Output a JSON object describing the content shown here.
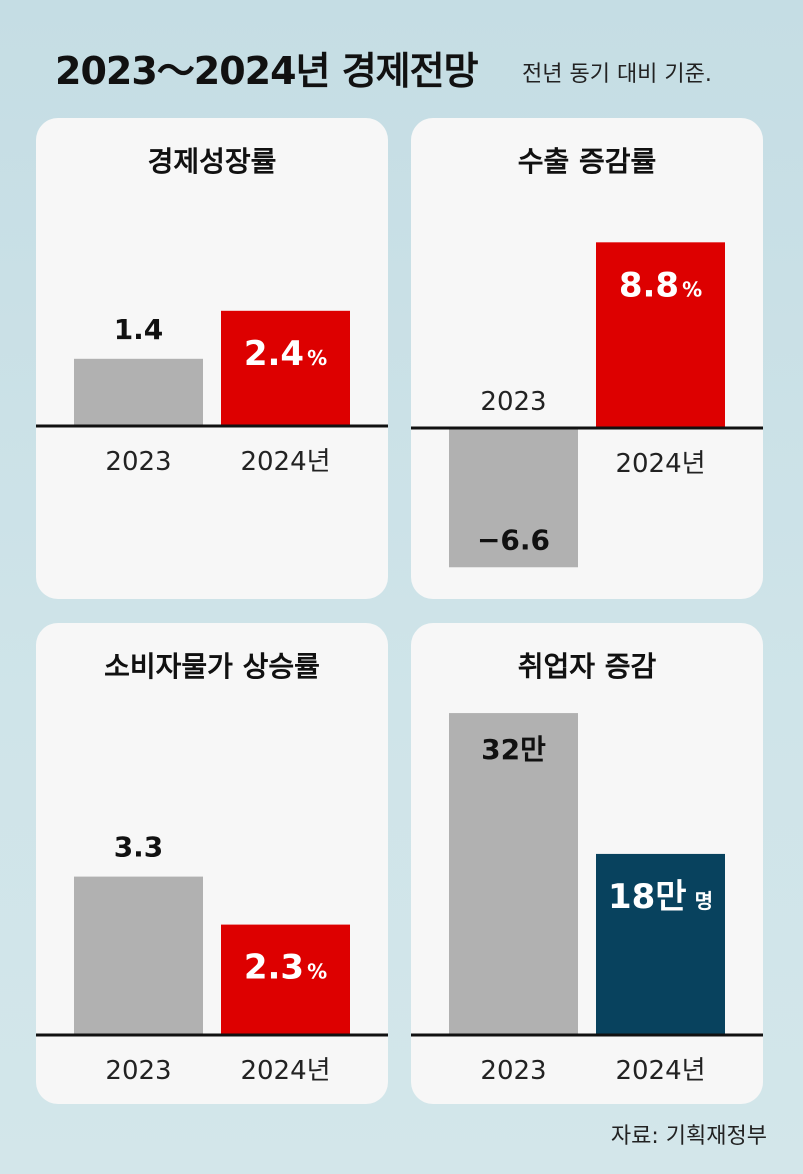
{
  "header": {
    "title": "2023～2024년 경제전망",
    "subtitle": "전년 동기 대비 기준."
  },
  "source": "자료: 기획재정부",
  "colors": {
    "gray": "#b1b1b1",
    "red": "#dd0000",
    "navy": "#08425e",
    "axis": "#111111"
  },
  "chart_data": [
    {
      "type": "bar",
      "title": "경제성장률",
      "categories": [
        "2023",
        "2024년"
      ],
      "values": [
        1.4,
        2.4
      ],
      "value_labels": [
        "1.4",
        "2.4"
      ],
      "unit": "%",
      "highlight_color": "red",
      "ylim": [
        0,
        3.3
      ]
    },
    {
      "type": "bar",
      "title": "수출 증감률",
      "categories": [
        "2023",
        "2024년"
      ],
      "values": [
        -6.6,
        8.8
      ],
      "value_labels": [
        "−6.6",
        "8.8"
      ],
      "unit": "%",
      "highlight_color": "red",
      "ylim": [
        -6.6,
        8.8
      ]
    },
    {
      "type": "bar",
      "title": "소비자물가 상승률",
      "categories": [
        "2023",
        "2024년"
      ],
      "values": [
        3.3,
        2.3
      ],
      "value_labels": [
        "3.3",
        "2.3"
      ],
      "unit": "%",
      "highlight_color": "red",
      "ylim": [
        0,
        5.6
      ]
    },
    {
      "type": "bar",
      "title": "취업자 증감",
      "categories": [
        "2023",
        "2024년"
      ],
      "values": [
        32,
        18
      ],
      "value_labels": [
        "32만",
        "18만"
      ],
      "unit": "명",
      "highlight_color": "navy",
      "ylim": [
        0,
        32
      ]
    }
  ]
}
